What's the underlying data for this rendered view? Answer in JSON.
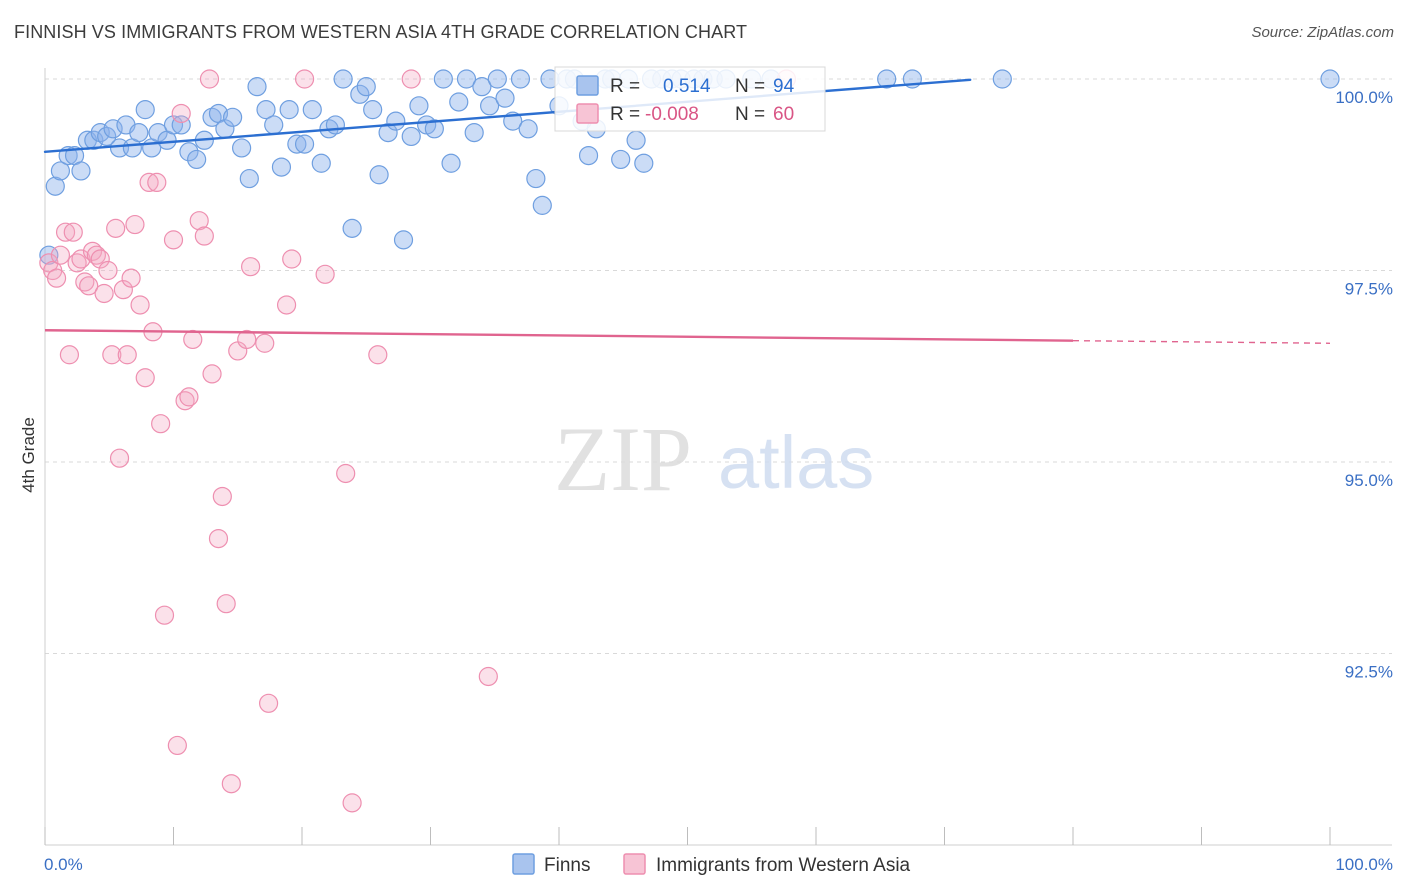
{
  "header": {
    "title": "FINNISH VS IMMIGRANTS FROM WESTERN ASIA 4TH GRADE CORRELATION CHART",
    "source": "Source: ZipAtlas.com"
  },
  "watermark": {
    "zip": "ZIP",
    "atlas": "atlas"
  },
  "legend": {
    "r_label": "R =",
    "n_label": "N =",
    "rows": [
      {
        "name": "Finns",
        "r": "0.514",
        "n": "94",
        "color": "#6f9fe0"
      },
      {
        "name": "Immigrants from Western Asia",
        "r": "-0.008",
        "n": "60",
        "color": "#ee8fb0"
      }
    ]
  },
  "chart_data": {
    "type": "scatter",
    "title": "FINNISH VS IMMIGRANTS FROM WESTERN ASIA 4TH GRADE CORRELATION CHART",
    "xlabel": "",
    "ylabel": "4th Grade",
    "xlim": [
      0,
      100
    ],
    "ylim": [
      89.75,
      100.35
    ],
    "x_tick_labels": [
      "0.0%",
      "100.0%"
    ],
    "y_ticks": [
      92.5,
      95.0,
      97.5,
      100.0
    ],
    "y_tick_labels": [
      "92.5%",
      "95.0%",
      "97.5%",
      "100.0%"
    ],
    "grid": true,
    "series": [
      {
        "name": "Finns",
        "color": "#6f9fe0",
        "line_color": "#2c6fd1",
        "trend": {
          "x0": 0,
          "y0": 99.05,
          "x1": 72,
          "y1": 99.99
        },
        "points": [
          [
            0.3,
            97.7
          ],
          [
            0.8,
            98.6
          ],
          [
            1.2,
            98.8
          ],
          [
            1.8,
            99.0
          ],
          [
            2.3,
            99.0
          ],
          [
            2.8,
            98.8
          ],
          [
            3.3,
            99.2
          ],
          [
            3.8,
            99.2
          ],
          [
            4.3,
            99.3
          ],
          [
            4.8,
            99.25
          ],
          [
            5.3,
            99.35
          ],
          [
            5.8,
            99.1
          ],
          [
            6.3,
            99.4
          ],
          [
            6.8,
            99.1
          ],
          [
            7.3,
            99.3
          ],
          [
            7.8,
            99.6
          ],
          [
            8.3,
            99.1
          ],
          [
            8.8,
            99.3
          ],
          [
            9.5,
            99.2
          ],
          [
            10.0,
            99.4
          ],
          [
            10.6,
            99.4
          ],
          [
            11.2,
            99.05
          ],
          [
            11.8,
            98.95
          ],
          [
            12.4,
            99.2
          ],
          [
            13.0,
            99.5
          ],
          [
            13.5,
            99.55
          ],
          [
            14.0,
            99.35
          ],
          [
            14.6,
            99.5
          ],
          [
            15.3,
            99.1
          ],
          [
            15.9,
            98.7
          ],
          [
            16.5,
            99.9
          ],
          [
            17.2,
            99.6
          ],
          [
            17.8,
            99.4
          ],
          [
            18.4,
            98.85
          ],
          [
            19.0,
            99.6
          ],
          [
            19.6,
            99.15
          ],
          [
            20.2,
            99.15
          ],
          [
            20.8,
            99.6
          ],
          [
            21.5,
            98.9
          ],
          [
            22.1,
            99.35
          ],
          [
            22.6,
            99.4
          ],
          [
            23.2,
            100.0
          ],
          [
            23.9,
            98.05
          ],
          [
            24.5,
            99.8
          ],
          [
            25.0,
            99.9
          ],
          [
            25.5,
            99.6
          ],
          [
            26.0,
            98.75
          ],
          [
            26.7,
            99.3
          ],
          [
            27.3,
            99.45
          ],
          [
            27.9,
            97.9
          ],
          [
            28.5,
            99.25
          ],
          [
            29.1,
            99.65
          ],
          [
            29.7,
            99.4
          ],
          [
            30.3,
            99.35
          ],
          [
            31.0,
            100.0
          ],
          [
            31.6,
            98.9
          ],
          [
            32.2,
            99.7
          ],
          [
            32.8,
            100.0
          ],
          [
            33.4,
            99.3
          ],
          [
            34.0,
            99.9
          ],
          [
            34.6,
            99.65
          ],
          [
            35.2,
            100.0
          ],
          [
            35.8,
            99.75
          ],
          [
            36.4,
            99.45
          ],
          [
            37.0,
            100.0
          ],
          [
            37.6,
            99.35
          ],
          [
            38.2,
            98.7
          ],
          [
            38.7,
            98.35
          ],
          [
            39.3,
            100.0
          ],
          [
            40.0,
            99.65
          ],
          [
            40.6,
            100.0
          ],
          [
            41.2,
            100.0
          ],
          [
            41.8,
            99.45
          ],
          [
            42.3,
            99.0
          ],
          [
            42.9,
            99.35
          ],
          [
            43.6,
            100.0
          ],
          [
            44.1,
            100.0
          ],
          [
            44.8,
            98.95
          ],
          [
            45.4,
            100.0
          ],
          [
            46.0,
            99.2
          ],
          [
            46.6,
            98.9
          ],
          [
            47.2,
            100.0
          ],
          [
            48.0,
            100.0
          ],
          [
            48.8,
            100.0
          ],
          [
            49.5,
            100.0
          ],
          [
            50.5,
            100.0
          ],
          [
            51.2,
            100.0
          ],
          [
            52.0,
            100.0
          ],
          [
            53.0,
            100.0
          ],
          [
            55.0,
            100.0
          ],
          [
            56.5,
            100.0
          ],
          [
            65.5,
            100.0
          ],
          [
            67.5,
            100.0
          ],
          [
            74.5,
            100.0
          ],
          [
            100.0,
            100.0
          ]
        ]
      },
      {
        "name": "Immigrants from Western Asia",
        "color": "#ee8fb0",
        "line_color": "#e0648f",
        "trend": {
          "x0": 0,
          "y0": 96.72,
          "x1": 100,
          "y1": 96.55,
          "solid_until": 80
        },
        "points": [
          [
            0.3,
            97.6
          ],
          [
            0.6,
            97.5
          ],
          [
            0.9,
            97.4
          ],
          [
            1.2,
            97.7
          ],
          [
            1.6,
            98.0
          ],
          [
            1.9,
            96.4
          ],
          [
            2.2,
            98.0
          ],
          [
            2.5,
            97.6
          ],
          [
            2.8,
            97.65
          ],
          [
            3.1,
            97.35
          ],
          [
            3.4,
            97.3
          ],
          [
            3.7,
            97.75
          ],
          [
            4.0,
            97.7
          ],
          [
            4.3,
            97.65
          ],
          [
            4.6,
            97.2
          ],
          [
            4.9,
            97.5
          ],
          [
            5.2,
            96.4
          ],
          [
            5.5,
            98.05
          ],
          [
            5.8,
            95.05
          ],
          [
            6.1,
            97.25
          ],
          [
            6.4,
            96.4
          ],
          [
            6.7,
            97.4
          ],
          [
            7.0,
            98.1
          ],
          [
            7.4,
            97.05
          ],
          [
            7.8,
            96.1
          ],
          [
            8.1,
            98.65
          ],
          [
            8.4,
            96.7
          ],
          [
            8.7,
            98.65
          ],
          [
            9.0,
            95.5
          ],
          [
            9.3,
            93.0
          ],
          [
            10.0,
            97.9
          ],
          [
            10.3,
            91.3
          ],
          [
            10.6,
            99.55
          ],
          [
            10.9,
            95.8
          ],
          [
            11.2,
            95.85
          ],
          [
            11.5,
            96.6
          ],
          [
            12.0,
            98.15
          ],
          [
            12.4,
            97.95
          ],
          [
            12.8,
            100.0
          ],
          [
            13.0,
            96.15
          ],
          [
            13.5,
            94.0
          ],
          [
            13.8,
            94.55
          ],
          [
            14.1,
            93.15
          ],
          [
            14.5,
            90.8
          ],
          [
            15.0,
            96.45
          ],
          [
            15.7,
            96.6
          ],
          [
            16.0,
            97.55
          ],
          [
            17.1,
            96.55
          ],
          [
            17.4,
            91.85
          ],
          [
            18.8,
            97.05
          ],
          [
            19.2,
            97.65
          ],
          [
            20.2,
            100.0
          ],
          [
            21.8,
            97.45
          ],
          [
            23.4,
            94.85
          ],
          [
            23.9,
            90.55
          ],
          [
            25.9,
            96.4
          ],
          [
            28.5,
            100.0
          ],
          [
            34.5,
            92.2
          ],
          [
            57.7,
            100.0
          ]
        ]
      }
    ]
  }
}
